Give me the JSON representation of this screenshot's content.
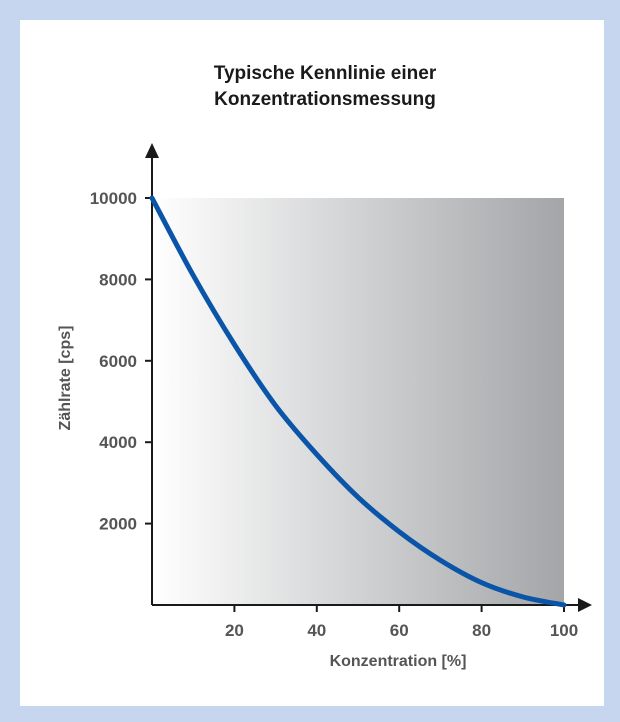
{
  "chart_data": {
    "type": "line",
    "title_lines": [
      "Typische Kennlinie einer",
      "Konzentrationsmessung"
    ],
    "xlabel": "Konzentration [%]",
    "ylabel": "Zählrate [cps]",
    "xlim": [
      0,
      100
    ],
    "ylim": [
      0,
      10000
    ],
    "x_ticks": [
      20,
      40,
      60,
      80,
      100
    ],
    "y_ticks": [
      2000,
      4000,
      6000,
      8000,
      10000
    ],
    "grid": false,
    "background": "gradient white to grey",
    "series": [
      {
        "color": "#0a55a8",
        "x": [
          0,
          10,
          20,
          30,
          40,
          50,
          60,
          70,
          80,
          90,
          100
        ],
        "y": [
          10000,
          8100,
          6400,
          4900,
          3700,
          2650,
          1800,
          1100,
          550,
          200,
          0
        ]
      }
    ]
  }
}
